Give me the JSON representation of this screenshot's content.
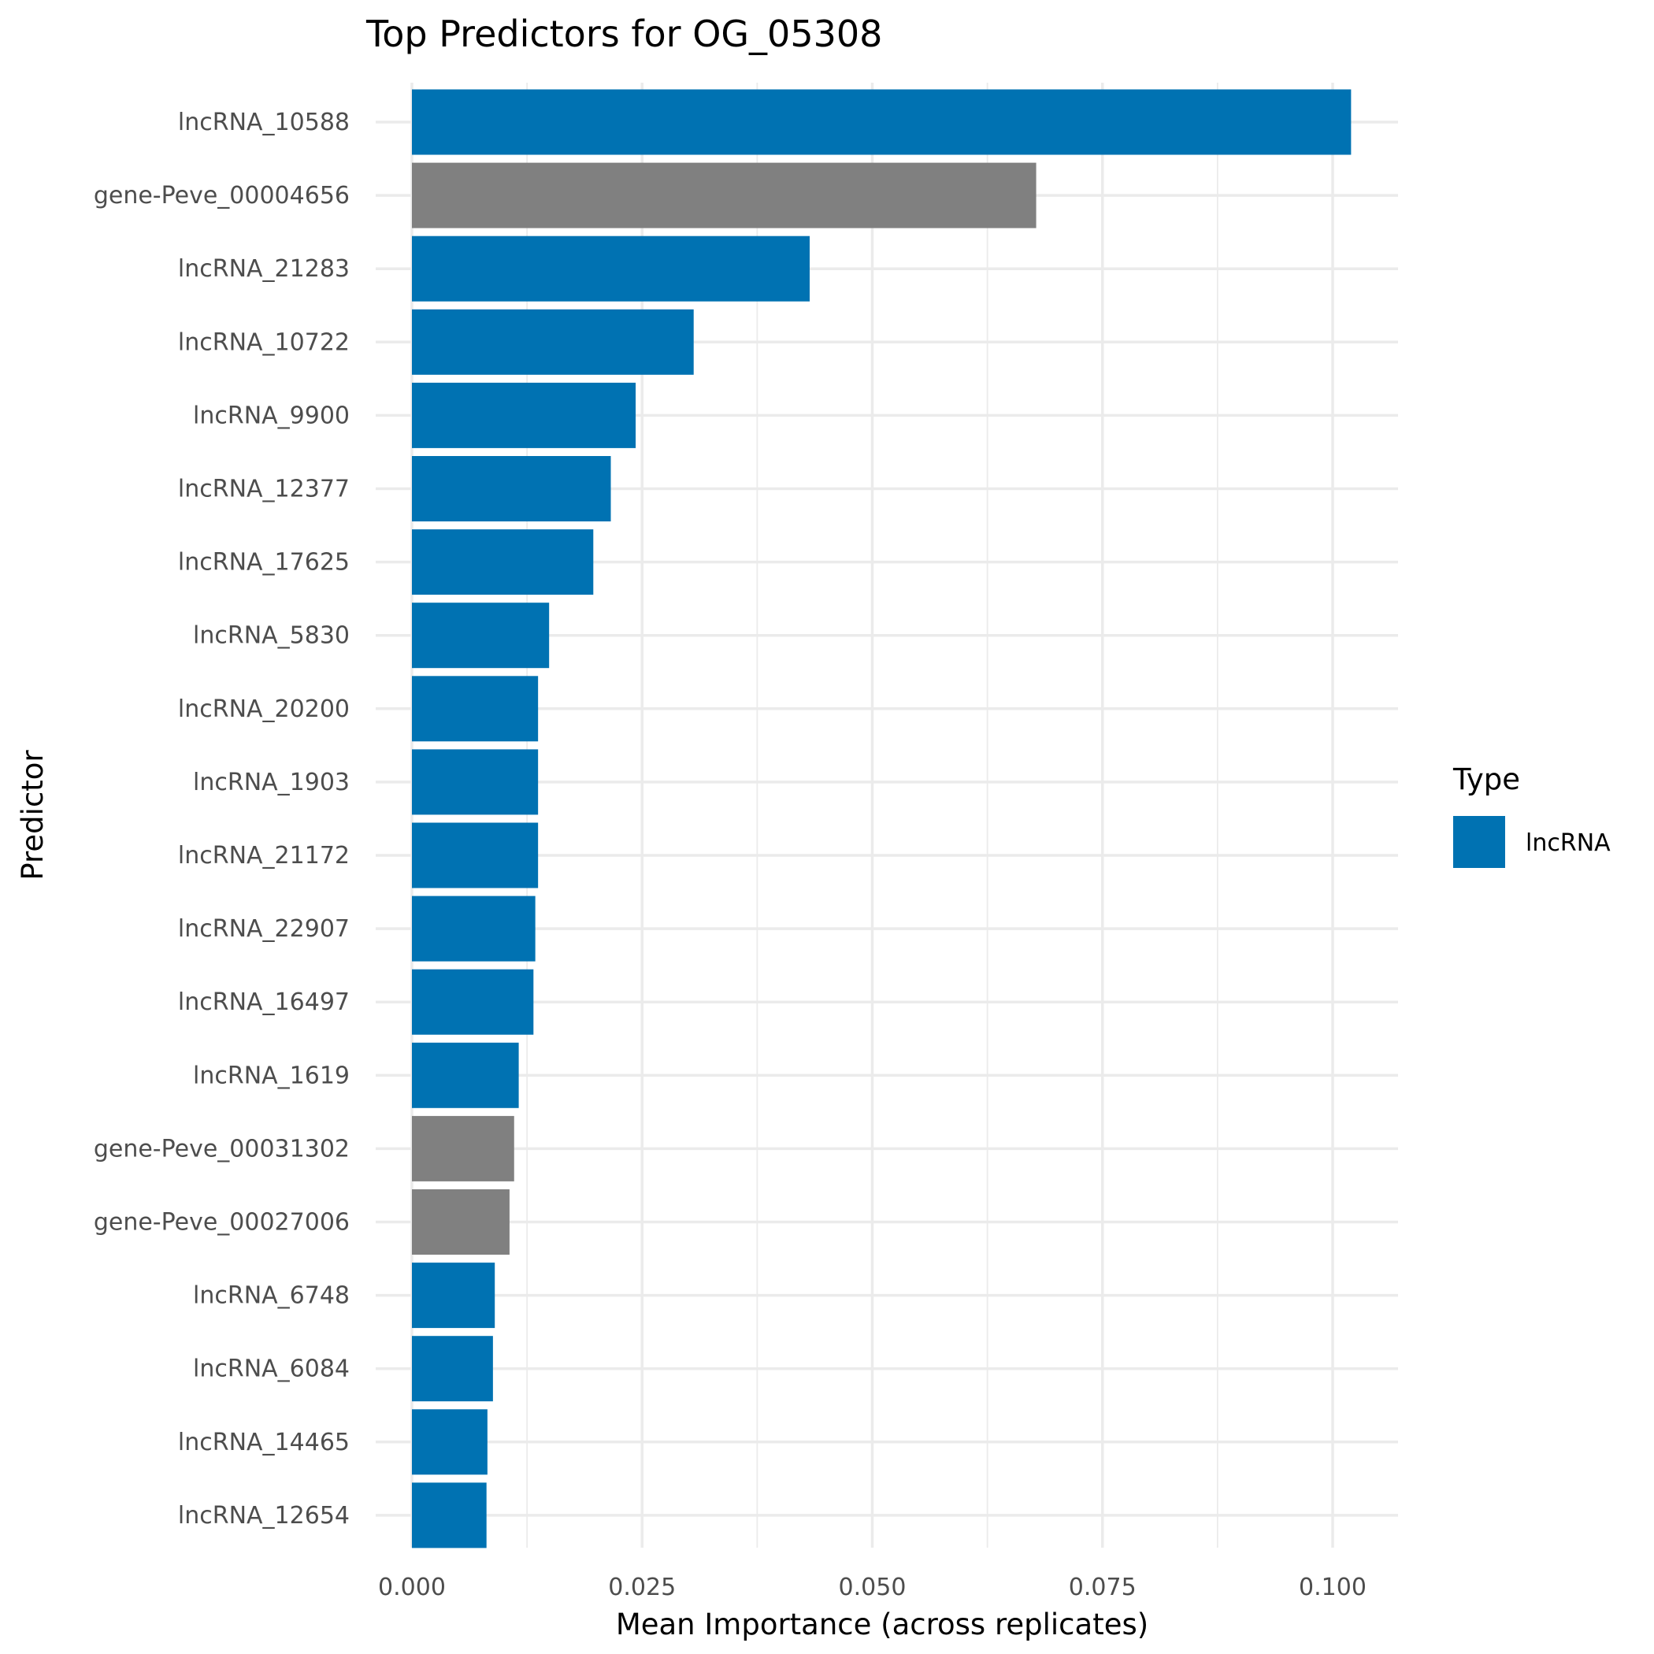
{
  "chart_data": {
    "type": "bar",
    "orientation": "horizontal",
    "title": "Top Predictors for OG_05308",
    "xlabel": "Mean Importance (across replicates)",
    "ylabel": "Predictor",
    "xlim": [
      0,
      0.107
    ],
    "xticks": [
      0.0,
      0.025,
      0.05,
      0.075,
      0.1
    ],
    "xtick_labels": [
      "0.000",
      "0.025",
      "0.050",
      "0.075",
      "0.100"
    ],
    "grid": true,
    "legend": {
      "title": "Type",
      "position": "right",
      "entries": [
        {
          "label": "lncRNA",
          "color": "#0072B2"
        }
      ]
    },
    "colors": {
      "lncRNA": "#0072B2",
      "gene": "#808080"
    },
    "categories": [
      "lncRNA_10588",
      "gene-Peve_00004656",
      "lncRNA_21283",
      "lncRNA_10722",
      "lncRNA_9900",
      "lncRNA_12377",
      "lncRNA_17625",
      "lncRNA_5830",
      "lncRNA_20200",
      "lncRNA_1903",
      "lncRNA_21172",
      "lncRNA_22907",
      "lncRNA_16497",
      "lncRNA_1619",
      "gene-Peve_00031302",
      "gene-Peve_00027006",
      "lncRNA_6748",
      "lncRNA_6084",
      "lncRNA_14465",
      "lncRNA_12654"
    ],
    "values": [
      0.102,
      0.0678,
      0.0432,
      0.0306,
      0.0243,
      0.0216,
      0.0197,
      0.0149,
      0.0137,
      0.0137,
      0.0137,
      0.0134,
      0.0132,
      0.0116,
      0.0111,
      0.0106,
      0.009,
      0.0088,
      0.0082,
      0.0081
    ],
    "types": [
      "lncRNA",
      "gene",
      "lncRNA",
      "lncRNA",
      "lncRNA",
      "lncRNA",
      "lncRNA",
      "lncRNA",
      "lncRNA",
      "lncRNA",
      "lncRNA",
      "lncRNA",
      "lncRNA",
      "lncRNA",
      "gene",
      "gene",
      "lncRNA",
      "lncRNA",
      "lncRNA",
      "lncRNA"
    ]
  }
}
